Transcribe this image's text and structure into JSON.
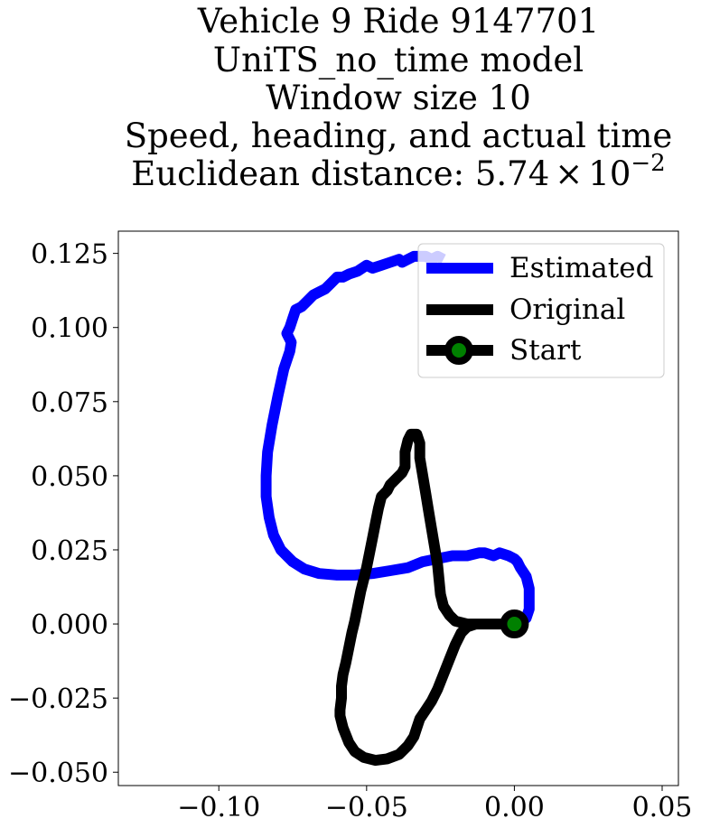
{
  "chart_data": {
    "type": "line",
    "title_lines": [
      "Vehicle 9 Ride 9147701",
      "UniTS_no_time model",
      "Window size 10",
      "Speed, heading, and actual time"
    ],
    "title_distance_prefix": "Euclidean distance: ",
    "title_distance_mantissa": "5.74",
    "title_distance_times": "×",
    "title_distance_base": "10",
    "title_distance_exponent": "−2",
    "xlabel": "",
    "ylabel": "",
    "xlim": [
      -0.134,
      0.0555
    ],
    "ylim": [
      -0.0545,
      0.1325
    ],
    "xticks": [
      -0.1,
      -0.05,
      0.0,
      0.05
    ],
    "xtick_labels": [
      "−0.10",
      "−0.05",
      "0.00",
      "0.05"
    ],
    "yticks": [
      -0.05,
      -0.025,
      0.0,
      0.025,
      0.05,
      0.075,
      0.1,
      0.125
    ],
    "ytick_labels": [
      "−0.050",
      "−0.025",
      "0.000",
      "0.025",
      "0.050",
      "0.075",
      "0.100",
      "0.125"
    ],
    "grid": false,
    "legend_position": "top-right",
    "series": [
      {
        "name": "Estimated",
        "color": "#0000ff",
        "points": [
          [
            0.0,
            0.0
          ],
          [
            0.004,
            0.002
          ],
          [
            0.005,
            0.005
          ],
          [
            0.005,
            0.008
          ],
          [
            0.005,
            0.012
          ],
          [
            0.004,
            0.016
          ],
          [
            0.002,
            0.019
          ],
          [
            0.001,
            0.021
          ],
          [
            0.0,
            0.022
          ],
          [
            -0.002,
            0.023
          ],
          [
            -0.005,
            0.024
          ],
          [
            -0.007,
            0.023
          ],
          [
            -0.01,
            0.024
          ],
          [
            -0.012,
            0.024
          ],
          [
            -0.016,
            0.023
          ],
          [
            -0.021,
            0.023
          ],
          [
            -0.026,
            0.022
          ],
          [
            -0.031,
            0.021
          ],
          [
            -0.036,
            0.019
          ],
          [
            -0.042,
            0.018
          ],
          [
            -0.048,
            0.017
          ],
          [
            -0.054,
            0.0165
          ],
          [
            -0.06,
            0.0165
          ],
          [
            -0.066,
            0.017
          ],
          [
            -0.071,
            0.0185
          ],
          [
            -0.075,
            0.021
          ],
          [
            -0.079,
            0.025
          ],
          [
            -0.0815,
            0.03
          ],
          [
            -0.083,
            0.036
          ],
          [
            -0.084,
            0.043
          ],
          [
            -0.084,
            0.05
          ],
          [
            -0.0835,
            0.058
          ],
          [
            -0.082,
            0.067
          ],
          [
            -0.08,
            0.077
          ],
          [
            -0.078,
            0.086
          ],
          [
            -0.076,
            0.092
          ],
          [
            -0.0755,
            0.095
          ],
          [
            -0.077,
            0.098
          ],
          [
            -0.076,
            0.1
          ],
          [
            -0.075,
            0.103
          ],
          [
            -0.074,
            0.106
          ],
          [
            -0.072,
            0.107
          ],
          [
            -0.07,
            0.109
          ],
          [
            -0.068,
            0.111
          ],
          [
            -0.066,
            0.112
          ],
          [
            -0.064,
            0.113
          ],
          [
            -0.062,
            0.115
          ],
          [
            -0.06,
            0.117
          ],
          [
            -0.058,
            0.117
          ],
          [
            -0.056,
            0.118
          ],
          [
            -0.053,
            0.119
          ],
          [
            -0.05,
            0.121
          ],
          [
            -0.048,
            0.12
          ],
          [
            -0.045,
            0.121
          ],
          [
            -0.042,
            0.122
          ],
          [
            -0.039,
            0.123
          ],
          [
            -0.038,
            0.122
          ],
          [
            -0.036,
            0.123
          ],
          [
            -0.034,
            0.124
          ],
          [
            -0.032,
            0.124
          ],
          [
            -0.03,
            0.124
          ],
          [
            -0.028,
            0.123
          ],
          [
            -0.026,
            0.124
          ],
          [
            -0.024,
            0.123
          ]
        ]
      },
      {
        "name": "Original",
        "color": "#000000",
        "points": [
          [
            0.0,
            0.0
          ],
          [
            -0.005,
            0.0
          ],
          [
            -0.01,
            0.0
          ],
          [
            -0.016,
            0.0
          ],
          [
            -0.02,
            0.001
          ],
          [
            -0.022,
            0.003
          ],
          [
            -0.024,
            0.006
          ],
          [
            -0.025,
            0.01
          ],
          [
            -0.0255,
            0.015
          ],
          [
            -0.026,
            0.02
          ],
          [
            -0.027,
            0.026
          ],
          [
            -0.028,
            0.032
          ],
          [
            -0.029,
            0.038
          ],
          [
            -0.03,
            0.044
          ],
          [
            -0.031,
            0.05
          ],
          [
            -0.032,
            0.056
          ],
          [
            -0.032,
            0.061
          ],
          [
            -0.033,
            0.064
          ],
          [
            -0.035,
            0.064
          ],
          [
            -0.036,
            0.062
          ],
          [
            -0.037,
            0.058
          ],
          [
            -0.037,
            0.053
          ],
          [
            -0.038,
            0.051
          ],
          [
            -0.04,
            0.049
          ],
          [
            -0.042,
            0.047
          ],
          [
            -0.043,
            0.045
          ],
          [
            -0.045,
            0.043
          ],
          [
            -0.046,
            0.039
          ],
          [
            -0.047,
            0.034
          ],
          [
            -0.048,
            0.029
          ],
          [
            -0.049,
            0.024
          ],
          [
            -0.05,
            0.019
          ],
          [
            -0.051,
            0.015
          ],
          [
            -0.052,
            0.011
          ],
          [
            -0.053,
            0.006
          ],
          [
            -0.054,
            0.001
          ],
          [
            -0.055,
            -0.003
          ],
          [
            -0.056,
            -0.008
          ],
          [
            -0.057,
            -0.013
          ],
          [
            -0.058,
            -0.017
          ],
          [
            -0.0585,
            -0.021
          ],
          [
            -0.0585,
            -0.025
          ],
          [
            -0.059,
            -0.029
          ],
          [
            -0.059,
            -0.031
          ],
          [
            -0.058,
            -0.035
          ],
          [
            -0.056,
            -0.04
          ],
          [
            -0.054,
            -0.043
          ],
          [
            -0.051,
            -0.045
          ],
          [
            -0.047,
            -0.046
          ],
          [
            -0.043,
            -0.0455
          ],
          [
            -0.039,
            -0.044
          ],
          [
            -0.036,
            -0.041
          ],
          [
            -0.034,
            -0.038
          ],
          [
            -0.033,
            -0.035
          ],
          [
            -0.032,
            -0.032
          ],
          [
            -0.03,
            -0.029
          ],
          [
            -0.028,
            -0.026
          ],
          [
            -0.026,
            -0.022
          ],
          [
            -0.024,
            -0.017
          ],
          [
            -0.022,
            -0.012
          ],
          [
            -0.02,
            -0.007
          ],
          [
            -0.018,
            -0.003
          ],
          [
            -0.016,
            -0.001
          ],
          [
            -0.013,
            0.0
          ],
          [
            -0.009,
            0.0
          ],
          [
            -0.005,
            0.0
          ],
          [
            0.0,
            0.0
          ]
        ]
      }
    ],
    "start_point": {
      "name": "Start",
      "x": 0.0,
      "y": 0.0,
      "edge_color": "#000000",
      "face_color": "#008000"
    }
  }
}
